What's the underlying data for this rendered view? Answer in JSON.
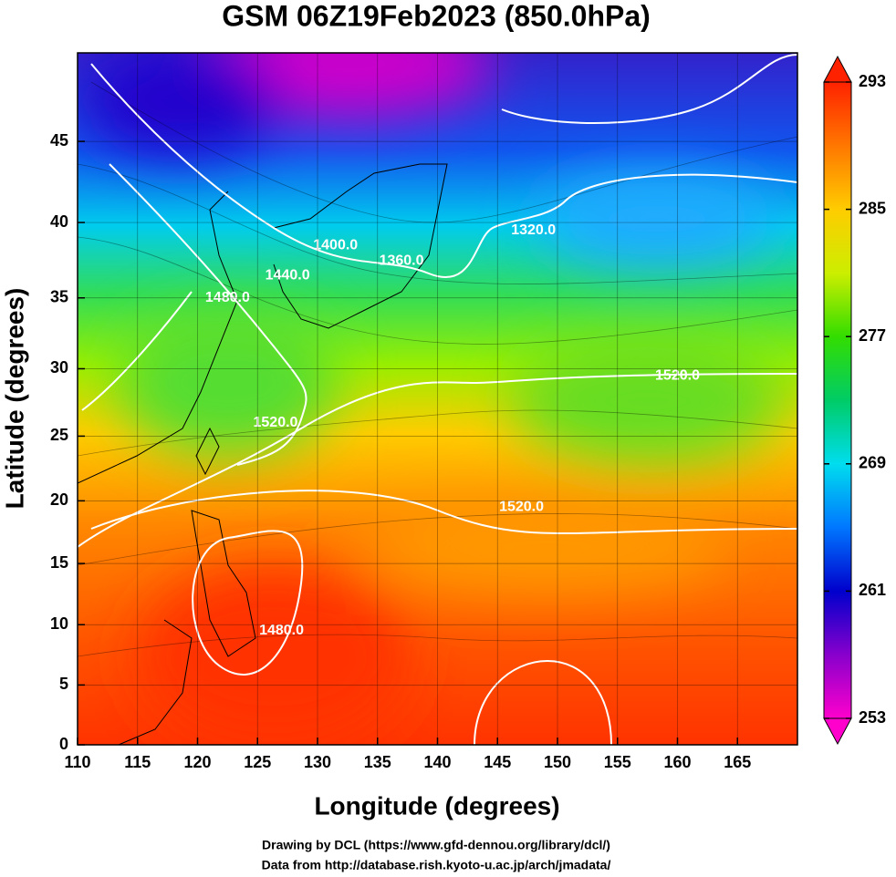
{
  "title": "GSM 06Z19Feb2023 (850.0hPa)",
  "x_axis": {
    "label": "Longitude (degrees)",
    "lim": [
      110,
      170
    ],
    "ticks": [
      110,
      115,
      120,
      125,
      130,
      135,
      140,
      145,
      150,
      155,
      160,
      165
    ]
  },
  "y_axis": {
    "label": "Latitude  (degrees)",
    "lim": [
      0,
      50
    ],
    "projection": "mercator",
    "ticks": [
      0,
      5,
      10,
      15,
      20,
      25,
      30,
      35,
      40,
      45
    ]
  },
  "colorbar": {
    "lim": [
      253,
      293
    ],
    "ticks": [
      253,
      261,
      269,
      277,
      285,
      293
    ],
    "colors": [
      "#ff00cc",
      "#8800cc",
      "#0000cc",
      "#0077ff",
      "#00ddee",
      "#00cc66",
      "#33dd00",
      "#ccee00",
      "#ffcc00",
      "#ff7700",
      "#ff2200"
    ]
  },
  "contour_labels": [
    {
      "text": "1320.0",
      "lon": 148,
      "lat": 39.5
    },
    {
      "text": "1360.0",
      "lon": 137,
      "lat": 37.5
    },
    {
      "text": "1400.0",
      "lon": 131.5,
      "lat": 38.5
    },
    {
      "text": "1440.0",
      "lon": 127.5,
      "lat": 36.5
    },
    {
      "text": "1480.0",
      "lon": 122.5,
      "lat": 35
    },
    {
      "text": "1520.0",
      "lon": 126.5,
      "lat": 26
    },
    {
      "text": "1520.0",
      "lon": 160,
      "lat": 29.5
    },
    {
      "text": "1520.0",
      "lon": 147,
      "lat": 19.5
    },
    {
      "text": "1480.0",
      "lon": 127,
      "lat": 9.5
    }
  ],
  "credits": [
    "Drawing by DCL (https://www.gfd-dennou.org/library/dcl/)",
    "Data from http://database.rish.kyoto-u.ac.jp/arch/jmadata/"
  ]
}
